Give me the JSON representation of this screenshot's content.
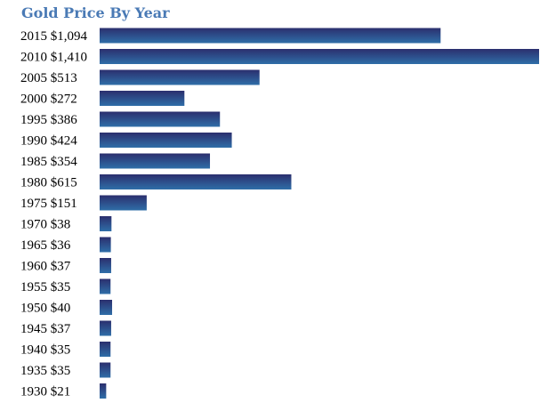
{
  "chart_data": {
    "type": "bar",
    "orientation": "horizontal",
    "title": "Gold Price By Year",
    "categories": [
      "2015",
      "2010",
      "2005",
      "2000",
      "1995",
      "1990",
      "1985",
      "1980",
      "1975",
      "1970",
      "1965",
      "1960",
      "1955",
      "1950",
      "1945",
      "1940",
      "1935",
      "1930"
    ],
    "labels": [
      "2015 $1,094",
      "2010 $1,410",
      "2005 $513",
      "2000 $272",
      "1995 $386",
      "1990 $424",
      "1985 $354",
      "1980 $615",
      "1975 $151",
      "1970 $38",
      "1965 $36",
      "1960 $37",
      "1955 $35",
      "1950 $40",
      "1945 $37",
      "1940 $35",
      "1935 $35",
      "1930 $21"
    ],
    "values": [
      1094,
      1410,
      513,
      272,
      386,
      424,
      354,
      615,
      151,
      38,
      36,
      37,
      35,
      40,
      37,
      35,
      35,
      21
    ],
    "xlim": [
      0,
      1410
    ],
    "grid": false,
    "bar_color_top": "#2b2f6e",
    "bar_color_bottom": "#2f6ea8"
  }
}
